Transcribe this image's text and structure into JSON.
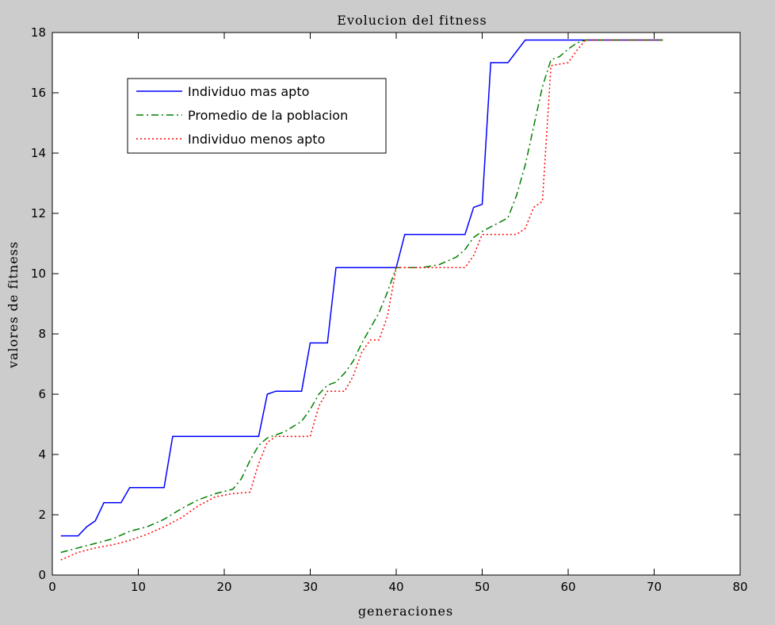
{
  "chart_data": {
    "type": "line",
    "title": "Evolucion del fitness",
    "xlabel": "generaciones",
    "ylabel": "valores de fitness",
    "xlim": [
      0,
      80
    ],
    "ylim": [
      0,
      18
    ],
    "xticks": [
      0,
      10,
      20,
      30,
      40,
      50,
      60,
      70,
      80
    ],
    "yticks": [
      0,
      2,
      4,
      6,
      8,
      10,
      12,
      14,
      16,
      18
    ],
    "grid": false,
    "legend": "top-left",
    "series": [
      {
        "name": "Individuo mas apto",
        "color": "#0000ff",
        "style": "solid",
        "x": [
          1,
          3,
          4,
          5,
          6,
          8,
          9,
          13,
          14,
          24,
          25,
          26,
          29,
          30,
          32,
          33,
          40,
          41,
          48,
          49,
          50,
          51,
          53,
          55,
          61,
          62,
          71
        ],
        "y": [
          1.3,
          1.3,
          1.6,
          1.8,
          2.4,
          2.4,
          2.9,
          2.9,
          4.6,
          4.6,
          6.0,
          6.1,
          6.1,
          7.7,
          7.7,
          10.2,
          10.2,
          11.3,
          11.3,
          12.2,
          12.3,
          17.0,
          17.0,
          17.75,
          17.75,
          17.75,
          17.75
        ]
      },
      {
        "name": "Promedio de la poblacion",
        "color": "#008000",
        "style": "dashdot",
        "x": [
          1,
          3,
          5,
          7,
          9,
          11,
          13,
          15,
          17,
          19,
          21,
          22,
          23,
          24,
          25,
          26,
          27,
          29,
          30,
          31,
          32,
          33,
          34,
          35,
          36,
          37,
          38,
          39,
          40,
          41,
          43,
          45,
          47,
          48,
          49,
          50,
          51,
          52,
          53,
          54,
          55,
          56,
          57,
          58,
          59,
          60,
          61,
          62,
          71
        ],
        "y": [
          0.75,
          0.9,
          1.05,
          1.2,
          1.45,
          1.6,
          1.85,
          2.2,
          2.5,
          2.7,
          2.85,
          3.2,
          3.8,
          4.3,
          4.55,
          4.65,
          4.75,
          5.1,
          5.5,
          6.0,
          6.3,
          6.4,
          6.7,
          7.1,
          7.7,
          8.2,
          8.7,
          9.4,
          10.2,
          10.2,
          10.2,
          10.3,
          10.55,
          10.8,
          11.2,
          11.4,
          11.55,
          11.7,
          11.85,
          12.6,
          13.6,
          14.9,
          16.2,
          17.1,
          17.2,
          17.45,
          17.65,
          17.75,
          17.75
        ]
      },
      {
        "name": "Individuo menos apto",
        "color": "#ff0000",
        "style": "dotted",
        "x": [
          1,
          3,
          5,
          7,
          9,
          11,
          13,
          15,
          17,
          19,
          21,
          23,
          24,
          25,
          26,
          30,
          31,
          32,
          34,
          35,
          36,
          37,
          38,
          39,
          40,
          41,
          48,
          49,
          50,
          51,
          54,
          55,
          56,
          57,
          58,
          59,
          60,
          61,
          62,
          71
        ],
        "y": [
          0.5,
          0.75,
          0.9,
          1.0,
          1.15,
          1.35,
          1.6,
          1.9,
          2.3,
          2.6,
          2.7,
          2.75,
          3.7,
          4.4,
          4.6,
          4.6,
          5.6,
          6.1,
          6.1,
          6.6,
          7.4,
          7.8,
          7.8,
          8.6,
          10.2,
          10.2,
          10.2,
          10.6,
          11.3,
          11.3,
          11.3,
          11.5,
          12.2,
          12.4,
          16.9,
          16.95,
          17.0,
          17.4,
          17.75,
          17.75
        ]
      }
    ]
  }
}
